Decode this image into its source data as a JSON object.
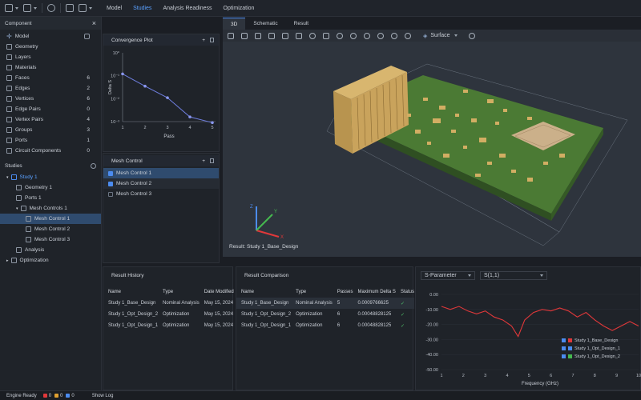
{
  "menu": [
    "Model",
    "Studies",
    "Analysis Readiness",
    "Optimization"
  ],
  "menu_active": 1,
  "component": {
    "title": "Component",
    "model_label": "Model",
    "items": [
      {
        "label": "Geometry",
        "count": ""
      },
      {
        "label": "Layers",
        "count": ""
      },
      {
        "label": "Materials",
        "count": ""
      },
      {
        "label": "Faces",
        "count": "6"
      },
      {
        "label": "Edges",
        "count": "2"
      },
      {
        "label": "Vertices",
        "count": "6"
      },
      {
        "label": "Edge Pairs",
        "count": "0"
      },
      {
        "label": "Vertex Pairs",
        "count": "4"
      },
      {
        "label": "Groups",
        "count": "3"
      },
      {
        "label": "Ports",
        "count": "1"
      },
      {
        "label": "Circuit Components",
        "count": "0"
      }
    ]
  },
  "studies": {
    "title": "Studies",
    "items": [
      {
        "label": "Study 1",
        "indent": 0,
        "highlight": true
      },
      {
        "label": "Geometry 1",
        "indent": 1
      },
      {
        "label": "Ports 1",
        "indent": 1
      },
      {
        "label": "Mesh Controls 1",
        "indent": 1
      },
      {
        "label": "Mesh Control 1",
        "indent": 2,
        "selected": true
      },
      {
        "label": "Mesh Control 2",
        "indent": 2
      },
      {
        "label": "Mesh Control 3",
        "indent": 2
      },
      {
        "label": "Analysis",
        "indent": 1
      },
      {
        "label": "Optimization",
        "indent": 0
      }
    ]
  },
  "convergence": {
    "title": "Convergence Plot",
    "xlabel": "Pass",
    "ylabel": "Delta S",
    "y_ticks": [
      "10⁰",
      "10⁻¹",
      "10⁻²",
      "10⁻³"
    ],
    "x_ticks": [
      "1",
      "2",
      "3",
      "4",
      "5"
    ]
  },
  "chart_data": [
    {
      "type": "line",
      "title": "Convergence Plot",
      "xlabel": "Pass",
      "ylabel": "Delta S",
      "log_y": true,
      "x": [
        1,
        2,
        3,
        4,
        5
      ],
      "values": [
        0.12,
        0.035,
        0.011,
        0.0016,
        0.0009
      ],
      "ylim": [
        0.001,
        1
      ]
    },
    {
      "type": "line",
      "xlabel": "Frequency (GHz)",
      "ylim": [
        -50,
        0
      ],
      "y_ticks": [
        "0.00",
        "-10.00",
        "-20.00",
        "-30.00",
        "-40.00",
        "-50.00"
      ],
      "x_ticks": [
        "1",
        "2",
        "3",
        "4",
        "5",
        "6",
        "7",
        "8",
        "9",
        "10"
      ],
      "series": [
        {
          "name": "Study 1_Base_Design",
          "x": [
            1,
            1.4,
            1.8,
            2.2,
            2.6,
            3.0,
            3.4,
            3.8,
            4.2,
            4.5,
            4.8,
            5.2,
            5.6,
            6.0,
            6.4,
            6.8,
            7.2,
            7.6,
            8.0,
            8.4,
            8.8,
            9.2,
            9.6,
            10
          ],
          "values": [
            -8,
            -10,
            -8,
            -11,
            -13,
            -11,
            -15,
            -17,
            -21,
            -28,
            -17,
            -12,
            -10,
            -11,
            -9,
            -11,
            -15,
            -12,
            -17,
            -21,
            -24,
            -21,
            -18,
            -21
          ]
        }
      ]
    }
  ],
  "mesh_control": {
    "title": "Mesh Control",
    "items": [
      {
        "label": "Mesh Control 1",
        "checked": true,
        "selected": true
      },
      {
        "label": "Mesh Control 2",
        "checked": true
      },
      {
        "label": "Mesh Control 3",
        "checked": false
      }
    ]
  },
  "view_tabs": [
    "3D",
    "Schematic",
    "Result"
  ],
  "view_mode": "Surface",
  "viewport_caption": "Result: Study 1_Base_Design",
  "result_history": {
    "title": "Result History",
    "columns": [
      "Name",
      "Type",
      "Date Modified"
    ],
    "rows": [
      [
        "Study 1_Base_Design",
        "Nominal Analysis",
        "May 15, 2024"
      ],
      [
        "Study 1_Opt_Design_2",
        "Optimization",
        "May 15, 2024"
      ],
      [
        "Study 1_Opt_Design_1",
        "Optimization",
        "May 15, 2024"
      ]
    ]
  },
  "result_comparison": {
    "title": "Result Comparison",
    "columns": [
      "Name",
      "Type",
      "Passes",
      "Maximum Delta S",
      "Status"
    ],
    "rows": [
      [
        "Study 1_Base_Design",
        "Nominal Analysis",
        "5",
        "0.0009766625",
        "✓"
      ],
      [
        "Study 1_Opt_Design_2",
        "Optimization",
        "6",
        "0.00048828125",
        "✓"
      ],
      [
        "Study 1_Opt_Design_1",
        "Optimization",
        "6",
        "0.00048828125",
        "✓"
      ]
    ]
  },
  "sparam": {
    "select1": "S-Parameter",
    "select2": "S(1,1)",
    "xlabel": "Frequency (GHz)",
    "legend": [
      {
        "label": "Study 1_Base_Design",
        "color": "#e0383a"
      },
      {
        "label": "Study 1_Opt_Design_1",
        "color": "#4c8cf0"
      },
      {
        "label": "Study 1_Opt_Design_2",
        "color": "#45b84f"
      }
    ]
  },
  "status": {
    "engine": "Engine Ready",
    "counts": [
      "0",
      "0",
      "0"
    ],
    "show_log": "Show Log"
  },
  "colors": {
    "accent": "#4c8cf0",
    "pcb": "#3f6b2f",
    "component": "#c9a863"
  }
}
